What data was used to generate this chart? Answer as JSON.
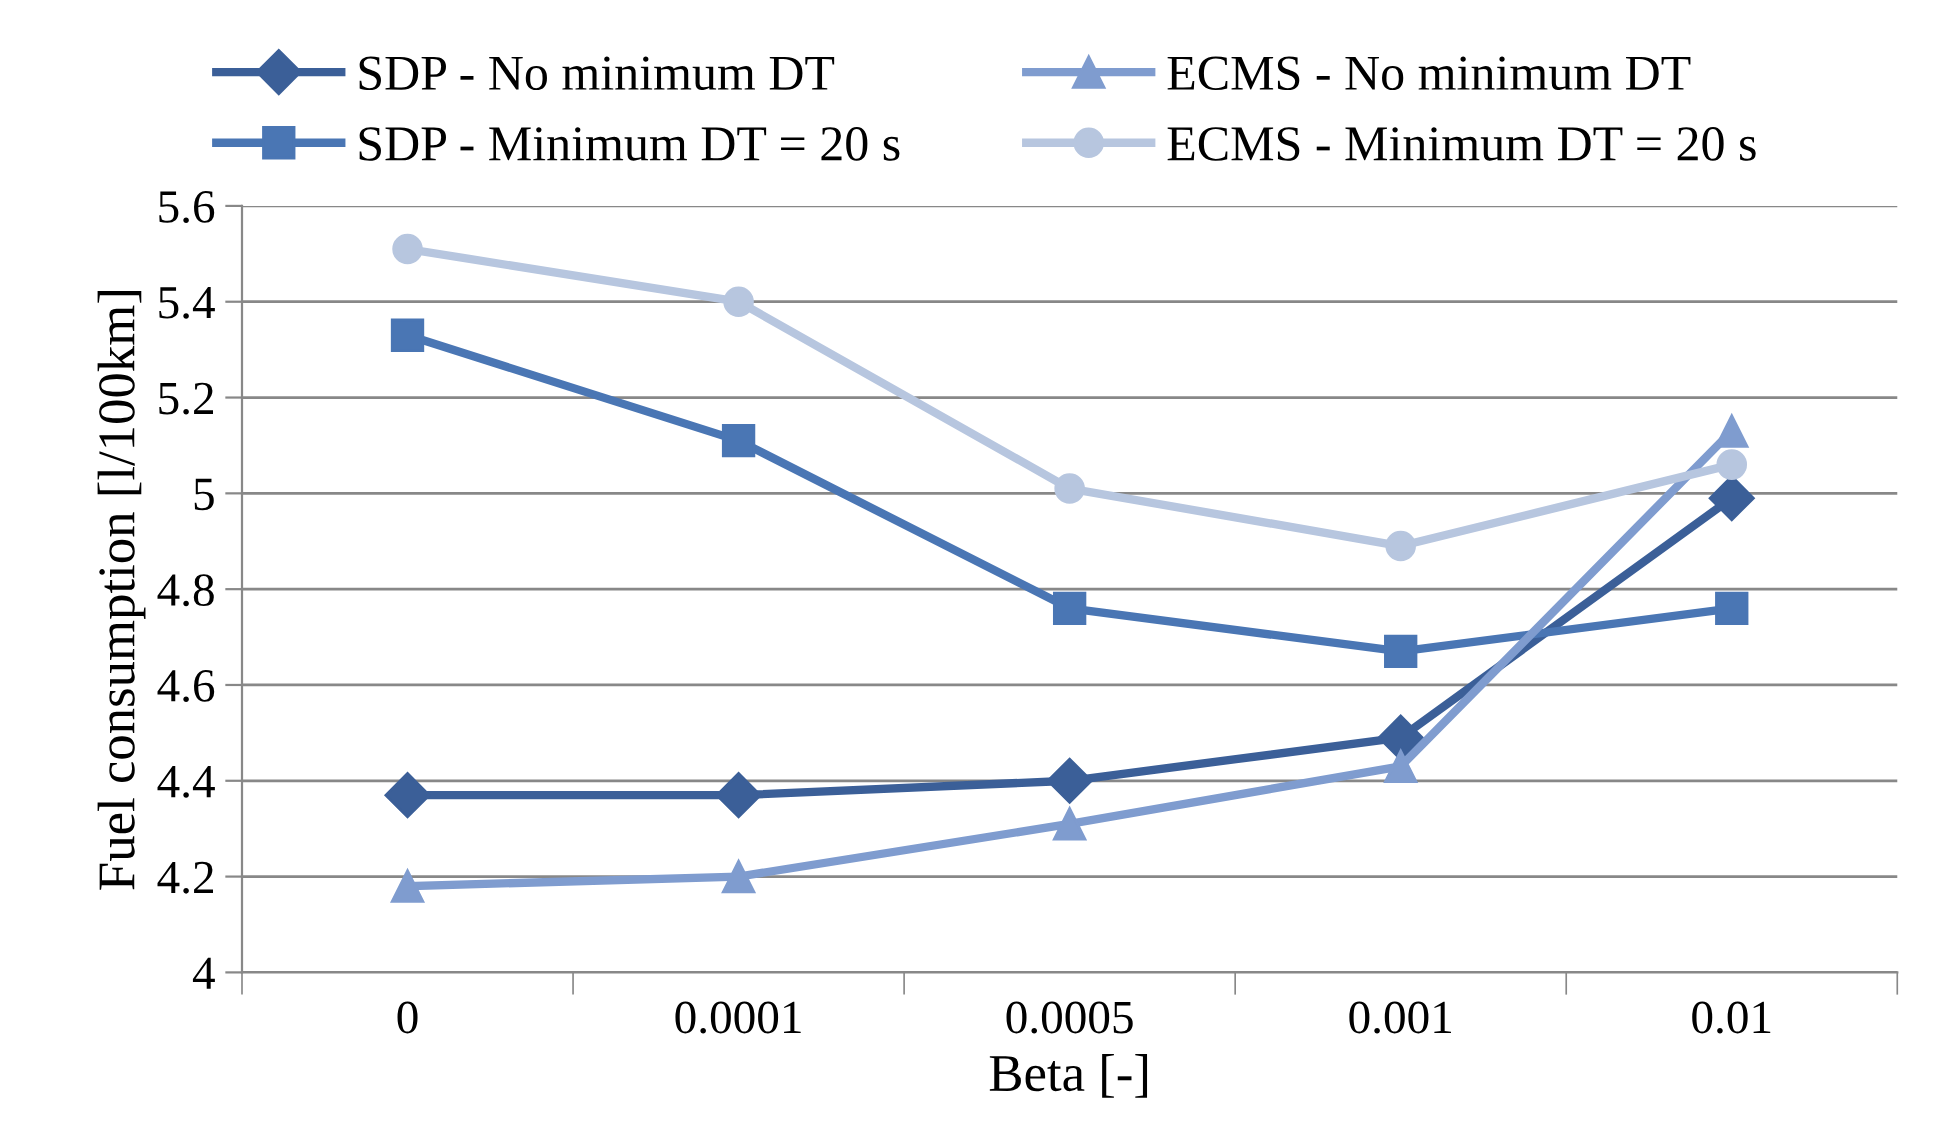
{
  "chart_data": {
    "type": "line",
    "xlabel": "Beta [-]",
    "ylabel": "Fuel consumption [l/100km]",
    "categories": [
      "0",
      "0.0001",
      "0.0005",
      "0.001",
      "0.01"
    ],
    "series": [
      {
        "name": "SDP - No minimum DT",
        "color": "#3b5f98",
        "marker": "diamond",
        "values": [
          4.37,
          4.37,
          4.4,
          4.49,
          4.99
        ]
      },
      {
        "name": "SDP - Minimum DT = 20 s",
        "color": "#4a76b4",
        "marker": "square",
        "values": [
          5.33,
          5.11,
          4.76,
          4.67,
          4.76
        ]
      },
      {
        "name": "ECMS - No minimum DT",
        "color": "#7f9ccf",
        "marker": "triangle",
        "values": [
          4.18,
          4.2,
          4.31,
          4.43,
          5.13
        ]
      },
      {
        "name": "ECMS - Minimum DT = 20 s",
        "color": "#b7c6df",
        "marker": "circle",
        "values": [
          5.51,
          5.4,
          5.01,
          4.89,
          5.06
        ]
      }
    ],
    "ylim": [
      4,
      5.6
    ],
    "yticks": [
      4,
      4.2,
      4.4,
      4.6,
      4.8,
      5,
      5.2,
      5.4,
      5.6
    ],
    "grid": "y",
    "legend": "top"
  }
}
